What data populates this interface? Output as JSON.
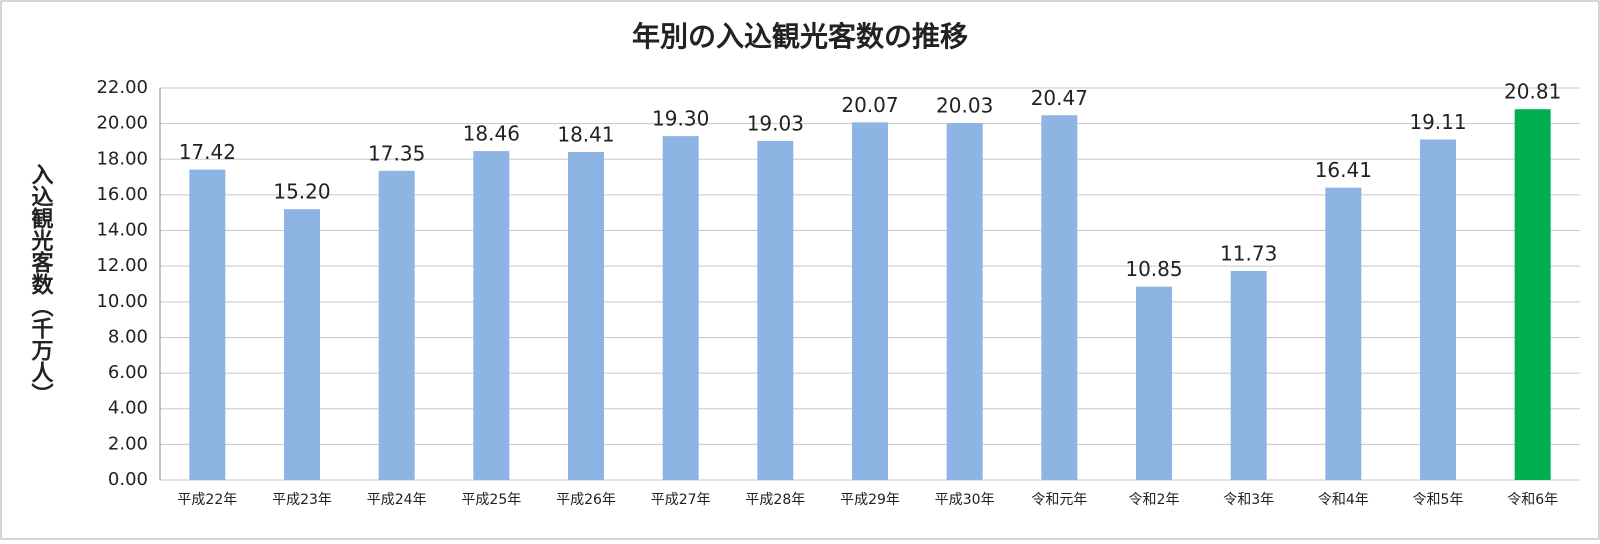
{
  "chart_data": {
    "type": "bar",
    "title": "年別の入込観光客数の推移",
    "y_label": "入込観光客数（千万人）",
    "categories": [
      "平成22年",
      "平成23年",
      "平成24年",
      "平成25年",
      "平成26年",
      "平成27年",
      "平成28年",
      "平成29年",
      "平成30年",
      "令和元年",
      "令和2年",
      "令和3年",
      "令和4年",
      "令和5年",
      "令和6年"
    ],
    "values": [
      17.42,
      15.2,
      17.35,
      18.46,
      18.41,
      19.3,
      19.03,
      20.07,
      20.03,
      20.47,
      10.85,
      11.73,
      16.41,
      19.11,
      20.81
    ],
    "value_labels": [
      "17.42",
      "15.20",
      "17.35",
      "18.46",
      "18.41",
      "19.30",
      "19.03",
      "20.07",
      "20.03",
      "20.47",
      "10.85",
      "11.73",
      "16.41",
      "19.11",
      "20.81"
    ],
    "colors": [
      "#8eb4e3",
      "#8eb4e3",
      "#8eb4e3",
      "#8eb4e3",
      "#8eb4e3",
      "#8eb4e3",
      "#8eb4e3",
      "#8eb4e3",
      "#8eb4e3",
      "#8eb4e3",
      "#8eb4e3",
      "#8eb4e3",
      "#8eb4e3",
      "#8eb4e3",
      "#00b050"
    ],
    "ylim": [
      0,
      22
    ],
    "yticks": [
      {
        "value": 0,
        "label": "0.00"
      },
      {
        "value": 2,
        "label": "2.00"
      },
      {
        "value": 4,
        "label": "4.00"
      },
      {
        "value": 6,
        "label": "6.00"
      },
      {
        "value": 8,
        "label": "8.00"
      },
      {
        "value": 10,
        "label": "10.00"
      },
      {
        "value": 12,
        "label": "12.00"
      },
      {
        "value": 14,
        "label": "14.00"
      },
      {
        "value": 16,
        "label": "16.00"
      },
      {
        "value": 18,
        "label": "18.00"
      },
      {
        "value": 20,
        "label": "20.00"
      },
      {
        "value": 22,
        "label": "22.00"
      }
    ],
    "grid": true
  }
}
